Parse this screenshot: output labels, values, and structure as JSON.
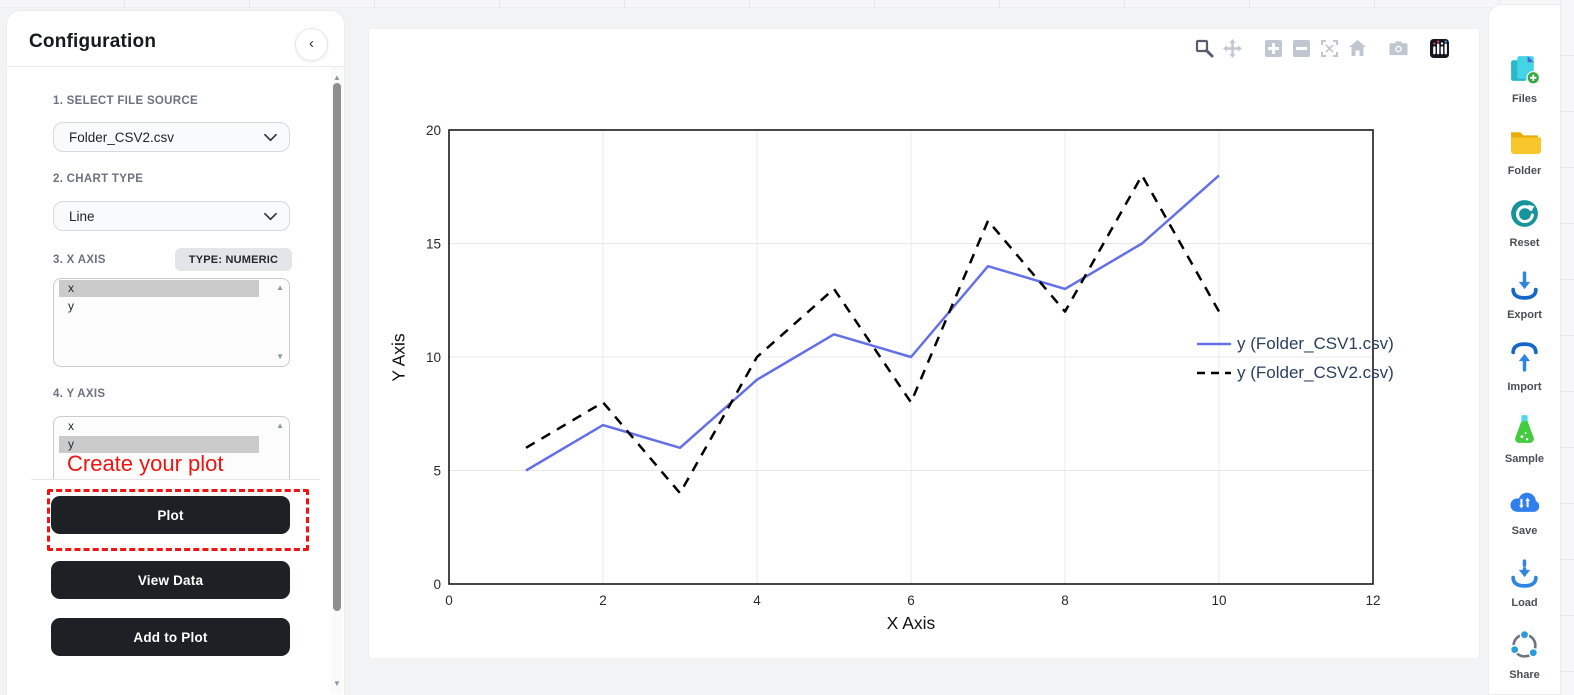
{
  "config": {
    "title": "Configuration",
    "collapse_icon": "chevron-left",
    "sections": {
      "file_source": {
        "label": "1. SELECT FILE SOURCE",
        "value": "Folder_CSV2.csv"
      },
      "chart_type": {
        "label": "2. CHART TYPE",
        "value": "Line"
      },
      "x_axis": {
        "label": "3. X AXIS",
        "badge": "TYPE: NUMERIC",
        "options": [
          {
            "label": "x",
            "selected": true
          },
          {
            "label": "y",
            "selected": false
          }
        ]
      },
      "y_axis": {
        "label": "4. Y AXIS",
        "options": [
          {
            "label": "x",
            "selected": false
          },
          {
            "label": "y",
            "selected": true
          }
        ]
      }
    },
    "annotation": {
      "text": "Create your plot",
      "color": "#ee1410"
    },
    "buttons": {
      "plot": "Plot",
      "view_data": "View Data",
      "add_to_plot": "Add to Plot"
    }
  },
  "modebar": {
    "icons": [
      "zoom",
      "pan",
      "zoom-in",
      "zoom-out",
      "autoscale",
      "reset-home",
      "camera",
      "plotly-logo"
    ],
    "groups": [
      2,
      6,
      7
    ]
  },
  "chart_data": {
    "type": "line",
    "x": [
      1,
      2,
      3,
      4,
      5,
      6,
      7,
      8,
      9,
      10
    ],
    "series": [
      {
        "name": "y (Folder_CSV1.csv)",
        "values": [
          5,
          7,
          6,
          9,
          11,
          10,
          14,
          13,
          15,
          18
        ],
        "color": "#6370E8",
        "style": "solid"
      },
      {
        "name": "y (Folder_CSV2.csv)",
        "values": [
          6,
          8,
          4,
          10,
          13,
          8,
          16,
          12,
          18,
          12
        ],
        "color": "#000000",
        "style": "dashed"
      }
    ],
    "title": "",
    "xlabel": "X Axis",
    "ylabel": "Y Axis",
    "xlim": [
      0,
      12
    ],
    "ylim": [
      0,
      20
    ],
    "xticks": [
      0,
      2,
      4,
      6,
      8,
      10,
      12
    ],
    "yticks": [
      0,
      5,
      10,
      15,
      20
    ],
    "grid": true,
    "legend_position": "inside-right"
  },
  "right_toolbar": {
    "items": [
      {
        "label": "Files",
        "icon": "files-icon"
      },
      {
        "label": "Folder",
        "icon": "folder-icon"
      },
      {
        "label": "Reset",
        "icon": "reset-icon"
      },
      {
        "label": "Export",
        "icon": "export-icon"
      },
      {
        "label": "Import",
        "icon": "import-icon"
      },
      {
        "label": "Sample",
        "icon": "sample-icon"
      },
      {
        "label": "Save",
        "icon": "save-icon"
      },
      {
        "label": "Load",
        "icon": "load-icon"
      },
      {
        "label": "Share",
        "icon": "share-icon"
      }
    ]
  },
  "colors": {
    "annotation_red": "#ee1410",
    "button_dark": "#1d2025",
    "legend_text": "#2a3f5f",
    "grid_line": "#e8e8ec",
    "axis_box": "#1a1a1a"
  }
}
